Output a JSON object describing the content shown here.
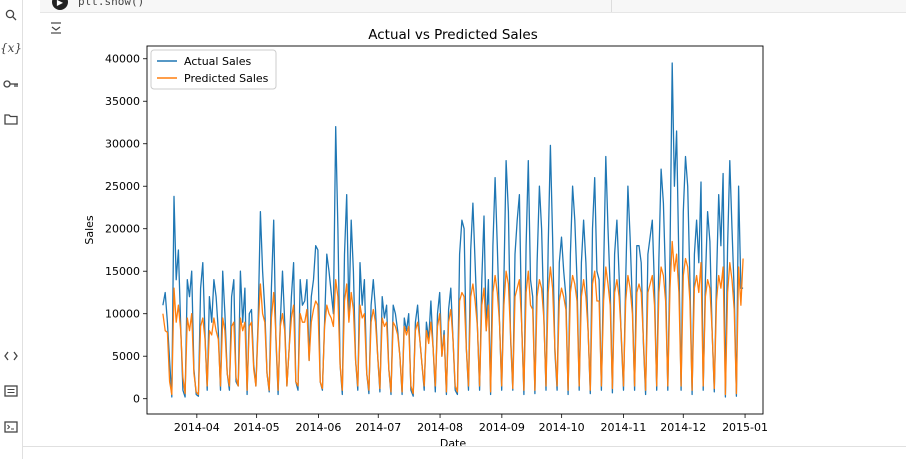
{
  "sidebar": {
    "icons": [
      "search-icon",
      "variables-icon",
      "key-icon",
      "folder-icon",
      "code-icon",
      "terminal-list-icon",
      "terminal-icon"
    ],
    "variables_label": "{x}"
  },
  "cell": {
    "code_fragment": "plt.show()"
  },
  "colors": {
    "actual": "#1f77b4",
    "predicted": "#ff7f0e"
  },
  "chart_data": {
    "type": "line",
    "title": "Actual vs Predicted Sales",
    "xlabel": "Date",
    "ylabel": "Sales",
    "ylim": [
      -1800,
      41500
    ],
    "xlim": [
      "2014-03-07",
      "2015-01-10"
    ],
    "y_ticks": [
      0,
      5000,
      10000,
      15000,
      20000,
      25000,
      30000,
      35000,
      40000
    ],
    "x_ticks": [
      "2014-04",
      "2014-05",
      "2014-06",
      "2014-07",
      "2014-08",
      "2014-09",
      "2014-10",
      "2014-11",
      "2014-12",
      "2015-01"
    ],
    "legend_position": "upper-left",
    "x_start": "2014-03-15",
    "x_end": "2014-12-31",
    "series": [
      {
        "name": "Actual Sales",
        "color": "#1f77b4",
        "values": [
          11000,
          12500,
          9000,
          4500,
          200,
          23800,
          14000,
          17500,
          8500,
          1000,
          200,
          14000,
          12000,
          15000,
          3500,
          500,
          300,
          13000,
          16000,
          7500,
          1000,
          12000,
          9000,
          14000,
          12000,
          8000,
          1000,
          15000,
          10000,
          3000,
          1000,
          12000,
          14000,
          2000,
          1500,
          15000,
          9000,
          13000,
          500,
          10000,
          10500,
          4000,
          1500,
          9500,
          22000,
          15000,
          10500,
          3000,
          800,
          13000,
          21000,
          7000,
          500,
          9000,
          15000,
          9000,
          1500,
          6000,
          12000,
          16000,
          2000,
          1000,
          14000,
          11000,
          11500,
          14000,
          4500,
          12000,
          14000,
          18000,
          17500,
          2000,
          1000,
          9000,
          17000,
          15000,
          12500,
          10000,
          32000,
          20000,
          4000,
          500,
          17000,
          24000,
          10000,
          21000,
          15000,
          4500,
          1000,
          16000,
          11000,
          14000,
          3000,
          600,
          11000,
          14000,
          10500,
          5000,
          800,
          12000,
          9500,
          11000,
          3500,
          500,
          11000,
          10000,
          8000,
          5000,
          500,
          9500,
          8000,
          10000,
          1000,
          300,
          9000,
          11000,
          7000,
          4000,
          1000,
          9000,
          7000,
          11500,
          6000,
          800,
          10000,
          12500,
          5000,
          8000,
          500,
          10500,
          13000,
          7000,
          1000,
          500,
          17000,
          21000,
          20000,
          6000,
          1000,
          17500,
          23000,
          16000,
          8500,
          1000,
          14000,
          21500,
          8000,
          14000,
          500,
          18000,
          26000,
          18000,
          9000,
          1000,
          14000,
          28000,
          22000,
          7000,
          1000,
          17000,
          21000,
          24000,
          9000,
          500,
          18000,
          28000,
          14000,
          12000,
          600,
          16000,
          25000,
          20000,
          10000,
          1000,
          18000,
          29800,
          19000,
          5500,
          1000,
          16000,
          19000,
          15000,
          12000,
          500,
          17000,
          25000,
          21000,
          14000,
          1000,
          16000,
          21000,
          16000,
          8000,
          600,
          20000,
          26000,
          15000,
          14000,
          1000,
          15000,
          28500,
          20000,
          13000,
          700,
          17000,
          21000,
          14500,
          7000,
          1000,
          14000,
          25000,
          19000,
          11000,
          1000,
          18000,
          18000,
          16000,
          6500,
          500,
          17000,
          19000,
          21000,
          13000,
          1000,
          16500,
          27000,
          23000,
          14000,
          1000,
          17000,
          39500,
          25000,
          31500,
          16000,
          1000,
          22000,
          28500,
          25000,
          14000,
          500,
          17000,
          21000,
          16000,
          25500,
          1000,
          14000,
          22000,
          18500,
          8000,
          800,
          14000,
          24000,
          18000,
          26500,
          200,
          18000,
          28000,
          20000,
          12500,
          300,
          25000,
          13000,
          13000
        ],
        "values_note": "approximate daily readings"
      },
      {
        "name": "Predicted Sales",
        "color": "#ff7f0e",
        "values": [
          10000,
          8000,
          7800,
          2000,
          500,
          13000,
          9000,
          11000,
          8000,
          2500,
          600,
          9500,
          8000,
          10000,
          3000,
          800,
          500,
          8500,
          9500,
          7000,
          1500,
          8000,
          7500,
          9500,
          8000,
          7000,
          1500,
          9500,
          8000,
          3000,
          1500,
          8500,
          9000,
          2500,
          1500,
          9500,
          8000,
          9000,
          1000,
          8500,
          9000,
          3500,
          1500,
          8500,
          13500,
          10000,
          9000,
          3000,
          1000,
          9500,
          12500,
          7500,
          1000,
          8500,
          10000,
          8000,
          1500,
          6000,
          9500,
          11000,
          2000,
          1500,
          10000,
          9000,
          9000,
          10500,
          4500,
          9000,
          10500,
          11500,
          11000,
          2000,
          1200,
          8500,
          11000,
          10000,
          9500,
          8500,
          14000,
          12000,
          4000,
          1000,
          11500,
          13500,
          9000,
          12500,
          10500,
          4500,
          1500,
          11000,
          9500,
          10000,
          3000,
          1000,
          9000,
          10500,
          9000,
          5000,
          1200,
          9500,
          8500,
          9000,
          3500,
          800,
          9000,
          8500,
          7500,
          5000,
          800,
          8500,
          7500,
          8500,
          1500,
          600,
          8000,
          9000,
          7000,
          4000,
          1500,
          8000,
          6500,
          9000,
          6000,
          1500,
          8500,
          10000,
          5000,
          7500,
          800,
          9000,
          10500,
          7000,
          1500,
          800,
          11500,
          12500,
          12000,
          6000,
          1500,
          12000,
          13500,
          11500,
          8500,
          1500,
          11000,
          13000,
          8000,
          11000,
          800,
          12500,
          14500,
          12500,
          9000,
          1500,
          11000,
          15000,
          13500,
          7500,
          1200,
          12000,
          13000,
          14000,
          9000,
          1000,
          12500,
          15000,
          11000,
          10500,
          1000,
          12000,
          14000,
          13000,
          9500,
          1500,
          12500,
          15500,
          13000,
          6000,
          1500,
          11500,
          13000,
          12000,
          10500,
          1000,
          12500,
          14500,
          13500,
          11500,
          1500,
          12000,
          14000,
          12000,
          8000,
          1000,
          13500,
          15000,
          11500,
          11500,
          1500,
          11500,
          15500,
          13500,
          11000,
          1200,
          12500,
          14000,
          12000,
          7500,
          1500,
          11500,
          14500,
          13000,
          10000,
          1500,
          12500,
          13500,
          12500,
          7000,
          1000,
          12500,
          13500,
          14500,
          11000,
          1500,
          12500,
          15500,
          14500,
          11500,
          1500,
          13000,
          18500,
          15000,
          17000,
          12500,
          1500,
          14500,
          16500,
          15500,
          11500,
          1000,
          13000,
          14500,
          12500,
          16000,
          1500,
          12000,
          14000,
          13000,
          8000,
          1200,
          11500,
          14500,
          13000,
          15500,
          500,
          12500,
          16000,
          14000,
          10500,
          600,
          15500,
          11000,
          16500
        ]
      }
    ]
  }
}
